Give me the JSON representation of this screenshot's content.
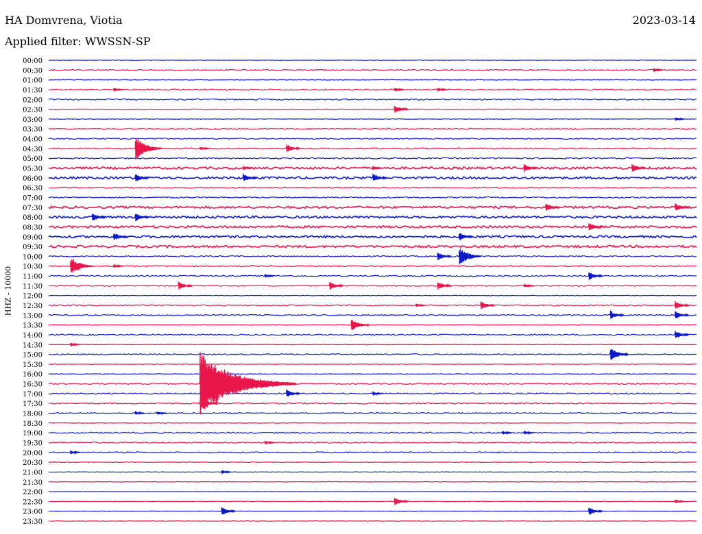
{
  "header": {
    "station": "HA Domvrena, Viotia",
    "date": "2023-03-14",
    "filter": "Applied filter: WWSSN-SP"
  },
  "axis": {
    "ylabel": "HHZ - 10000"
  },
  "colors": {
    "blue": "#0b19c9",
    "red": "#e8164a"
  },
  "chart_data": {
    "type": "line",
    "title": "HA Domvrena, Viotia",
    "date": "2023-03-14",
    "filter": "WWSSN-SP",
    "ylabel": "HHZ - 10000",
    "row_labels": [
      "00:00",
      "00:30",
      "01:00",
      "01:30",
      "02:00",
      "02:30",
      "03:00",
      "03:30",
      "04:00",
      "04:30",
      "05:00",
      "05:30",
      "06:00",
      "06:30",
      "07:00",
      "07:30",
      "08:00",
      "08:30",
      "09:00",
      "09:30",
      "10:00",
      "10:30",
      "11:00",
      "11:30",
      "12:00",
      "12:30",
      "13:00",
      "13:30",
      "14:00",
      "14:30",
      "15:00",
      "15:30",
      "16:00",
      "16:30",
      "17:00",
      "17:30",
      "18:00",
      "18:30",
      "19:00",
      "19:30",
      "20:00",
      "20:30",
      "21:00",
      "21:30",
      "22:00",
      "22:30",
      "23:00",
      "23:30"
    ],
    "trace_colors": [
      "blue",
      "red"
    ],
    "trace_amplitude": [
      0,
      1,
      0,
      1,
      1,
      0,
      0,
      1,
      1,
      1,
      1,
      2,
      2,
      1,
      1,
      2,
      2,
      2,
      2,
      2,
      1,
      1,
      1,
      1,
      0,
      1,
      1,
      0,
      1,
      0,
      1,
      0,
      0,
      1,
      1,
      1,
      1,
      0,
      1,
      1,
      1,
      0,
      0,
      0,
      0,
      0,
      0,
      0
    ],
    "events": [
      {
        "row": 1,
        "minute": 28,
        "amp": 1
      },
      {
        "row": 3,
        "minute": 3,
        "amp": 1
      },
      {
        "row": 3,
        "minute": 16,
        "amp": 1
      },
      {
        "row": 3,
        "minute": 18,
        "amp": 1
      },
      {
        "row": 5,
        "minute": 16,
        "amp": 2
      },
      {
        "row": 6,
        "minute": 29,
        "amp": 1
      },
      {
        "row": 9,
        "minute": 4,
        "amp": 5
      },
      {
        "row": 9,
        "minute": 7,
        "amp": 1
      },
      {
        "row": 9,
        "minute": 11,
        "amp": 2
      },
      {
        "row": 11,
        "minute": 9,
        "amp": 1
      },
      {
        "row": 11,
        "minute": 15,
        "amp": 1
      },
      {
        "row": 11,
        "minute": 22,
        "amp": 2
      },
      {
        "row": 11,
        "minute": 27,
        "amp": 2
      },
      {
        "row": 12,
        "minute": 4,
        "amp": 2
      },
      {
        "row": 12,
        "minute": 9,
        "amp": 2
      },
      {
        "row": 12,
        "minute": 15,
        "amp": 2
      },
      {
        "row": 15,
        "minute": 23,
        "amp": 2
      },
      {
        "row": 15,
        "minute": 29,
        "amp": 2
      },
      {
        "row": 16,
        "minute": 2,
        "amp": 2
      },
      {
        "row": 16,
        "minute": 4,
        "amp": 2
      },
      {
        "row": 17,
        "minute": 25,
        "amp": 2
      },
      {
        "row": 18,
        "minute": 3,
        "amp": 2
      },
      {
        "row": 18,
        "minute": 19,
        "amp": 2
      },
      {
        "row": 20,
        "minute": 18,
        "amp": 2
      },
      {
        "row": 20,
        "minute": 19,
        "amp": 4
      },
      {
        "row": 21,
        "minute": 1,
        "amp": 4
      },
      {
        "row": 21,
        "minute": 3,
        "amp": 1
      },
      {
        "row": 22,
        "minute": 10,
        "amp": 1
      },
      {
        "row": 22,
        "minute": 25,
        "amp": 2
      },
      {
        "row": 23,
        "minute": 6,
        "amp": 2
      },
      {
        "row": 23,
        "minute": 13,
        "amp": 2
      },
      {
        "row": 23,
        "minute": 18,
        "amp": 2
      },
      {
        "row": 23,
        "minute": 22,
        "amp": 1
      },
      {
        "row": 25,
        "minute": 17,
        "amp": 1
      },
      {
        "row": 25,
        "minute": 20,
        "amp": 2
      },
      {
        "row": 25,
        "minute": 29,
        "amp": 2
      },
      {
        "row": 26,
        "minute": 26,
        "amp": 2
      },
      {
        "row": 26,
        "minute": 29,
        "amp": 2
      },
      {
        "row": 27,
        "minute": 14,
        "amp": 3
      },
      {
        "row": 28,
        "minute": 29,
        "amp": 2
      },
      {
        "row": 29,
        "minute": 1,
        "amp": 1
      },
      {
        "row": 30,
        "minute": 26,
        "amp": 3
      },
      {
        "row": 33,
        "minute": 7,
        "amp": 12
      },
      {
        "row": 34,
        "minute": 11,
        "amp": 2
      },
      {
        "row": 34,
        "minute": 15,
        "amp": 1
      },
      {
        "row": 35,
        "minute": 7,
        "amp": 3
      },
      {
        "row": 36,
        "minute": 4,
        "amp": 1
      },
      {
        "row": 36,
        "minute": 5,
        "amp": 1
      },
      {
        "row": 38,
        "minute": 21,
        "amp": 1
      },
      {
        "row": 38,
        "minute": 22,
        "amp": 1
      },
      {
        "row": 39,
        "minute": 10,
        "amp": 1
      },
      {
        "row": 40,
        "minute": 1,
        "amp": 1
      },
      {
        "row": 42,
        "minute": 8,
        "amp": 1
      },
      {
        "row": 45,
        "minute": 16,
        "amp": 2
      },
      {
        "row": 45,
        "minute": 29,
        "amp": 1
      },
      {
        "row": 46,
        "minute": 8,
        "amp": 2
      },
      {
        "row": 46,
        "minute": 25,
        "amp": 2
      }
    ]
  }
}
